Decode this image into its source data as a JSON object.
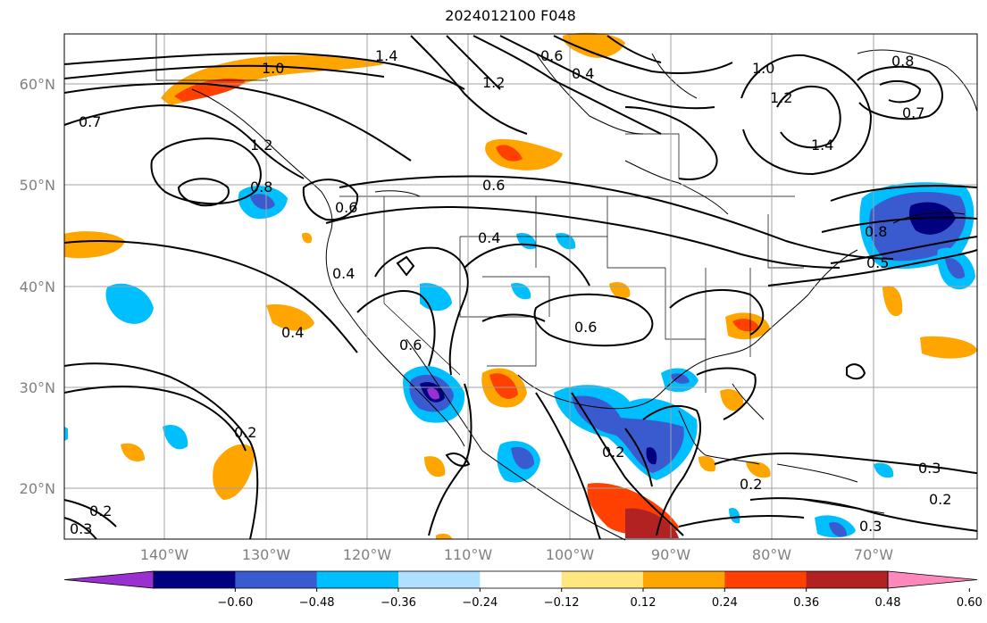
{
  "title": "2024012100 F048",
  "latitude_labels": [
    "60°N",
    "50°N",
    "40°N",
    "30°N",
    "20°N"
  ],
  "longitude_labels": [
    "140°W",
    "130°W",
    "120°W",
    "110°W",
    "100°W",
    "90°W",
    "80°W",
    "70°W"
  ],
  "colorbar": {
    "tick_labels": [
      "−0.60",
      "−0.48",
      "−0.36",
      "−0.24",
      "−0.12",
      "0.12",
      "0.24",
      "0.36",
      "0.48",
      "0.60"
    ],
    "colors": [
      "#9b30d0",
      "#000080",
      "#3a5bd0",
      "#00bfff",
      "#b0e0ff",
      "#ffffff",
      "#ffe680",
      "#ffa500",
      "#ff4000",
      "#b22222",
      "#ff88bb"
    ]
  },
  "contour_labels": [
    "1.0",
    "1.4",
    "0.7",
    "1.2",
    "1.2",
    "0.8",
    "0.6",
    "0.4",
    "0.6",
    "0.4",
    "0.4",
    "0.6",
    "0.6",
    "0.2",
    "0.3",
    "0.2",
    "0.2",
    "0.3",
    "0.2",
    "0.3",
    "0.8",
    "0.7",
    "1.4",
    "1.2",
    "1.0",
    "0.4",
    "0.6",
    "0.8",
    "0.5",
    "0.2"
  ],
  "colors": {
    "contour": "#000000",
    "grid": "#a0a0a0",
    "coast": "#000000"
  }
}
